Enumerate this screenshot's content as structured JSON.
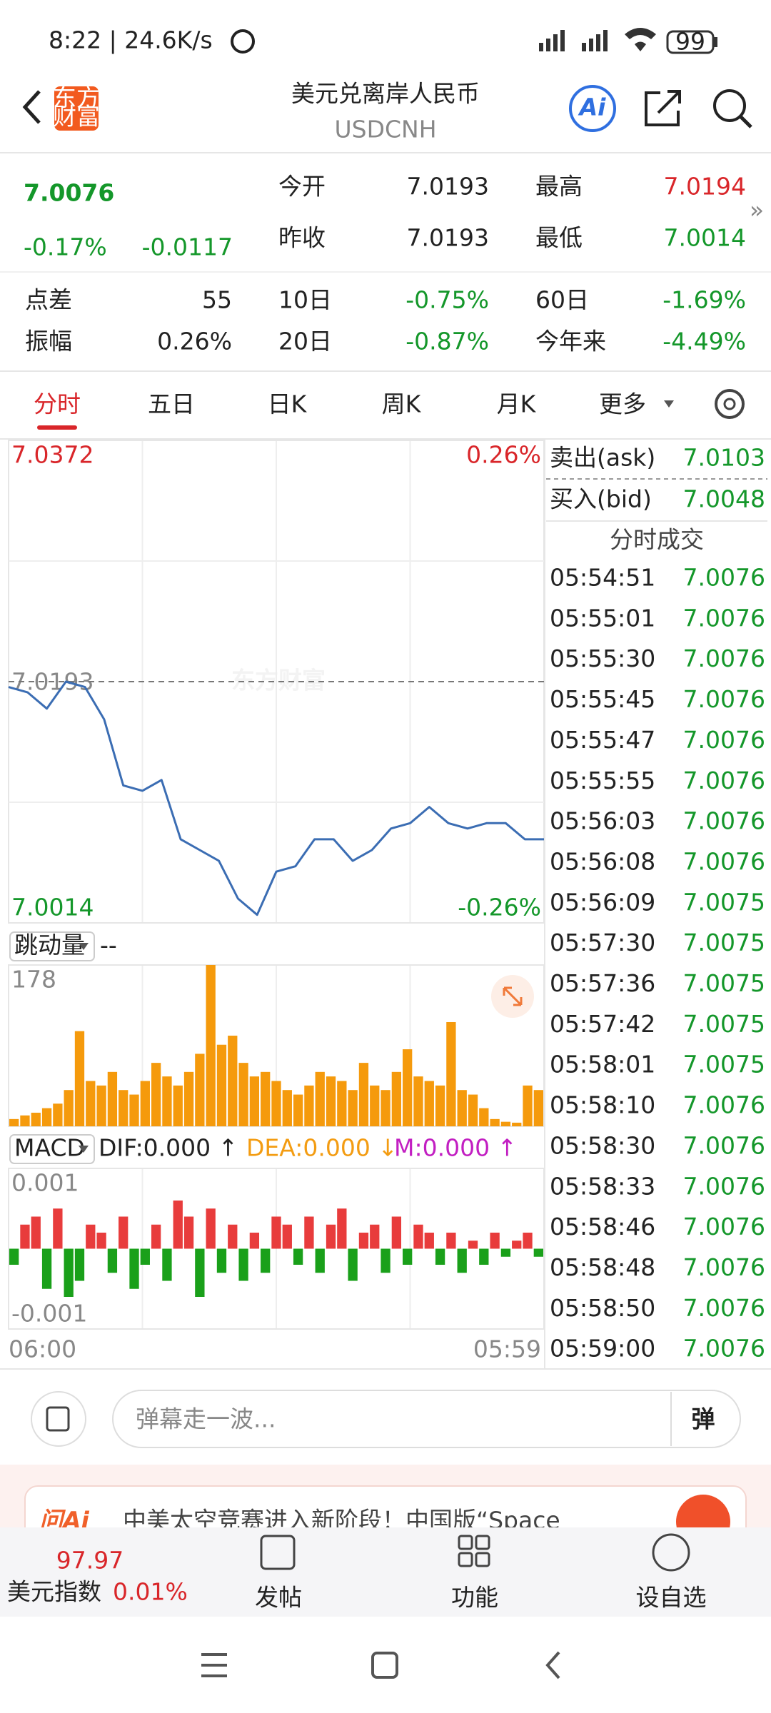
{
  "status_bar": {
    "time": "8:22 | 24.6K/s",
    "battery": "99"
  },
  "header": {
    "logo": [
      "东方",
      "财富"
    ],
    "title": "美元兑离岸人民币",
    "code": "USDCNH",
    "ai": "Ai"
  },
  "quote": {
    "price": "7.0076",
    "change_pct": "-0.17%",
    "change": "-0.0117",
    "fields": [
      [
        "今开",
        "7.0193"
      ],
      [
        "最高",
        "7.0194"
      ],
      [
        "昨收",
        "7.0193"
      ],
      [
        "最低",
        "7.0014"
      ]
    ],
    "stats": [
      [
        "点差",
        "55"
      ],
      [
        "10日",
        "-0.75%"
      ],
      [
        "60日",
        "-1.69%"
      ],
      [
        "振幅",
        "0.26%"
      ],
      [
        "20日",
        "-0.87%"
      ],
      [
        "今年来",
        "-4.49%"
      ]
    ]
  },
  "tabs": [
    "分时",
    "五日",
    "日K",
    "周K",
    "月K",
    "更多"
  ],
  "watermark": "东方财富",
  "volume_selector": "跳动量",
  "volume_value": "--",
  "macd_legend": {
    "name": "MACD",
    "dif": "DIF:0.000 ↑",
    "dea": "DEA:0.000 ↓",
    "m": "M:0.000 ↑"
  },
  "time_axis": [
    "06:00",
    "05:59"
  ],
  "chart_data": [
    {
      "type": "line",
      "color": "#3b6db3",
      "ylim": [
        7.0014,
        7.0372
      ],
      "yticks": [
        7.0014,
        7.0193,
        7.0372
      ],
      "y2lim": [
        -0.26,
        0.26
      ],
      "y2ticks": [
        {
          "value": -0.26,
          "label": "-0.26%"
        },
        {
          "value": 0.26,
          "label": "0.26%"
        }
      ],
      "values": [
        7.0189,
        7.0185,
        7.0173,
        7.0193,
        7.0189,
        7.0165,
        7.0116,
        7.0112,
        7.012,
        7.0076,
        7.0068,
        7.006,
        7.0032,
        7.002,
        7.0052,
        7.0056,
        7.0076,
        7.0076,
        7.006,
        7.0068,
        7.0084,
        7.0088,
        7.01,
        7.0088,
        7.0084,
        7.0088,
        7.0088,
        7.0076,
        7.0076
      ]
    },
    {
      "type": "bar",
      "color": "#f59a0c",
      "ylim": [
        0,
        178
      ],
      "yticks": [
        178
      ],
      "values": [
        8,
        12,
        15,
        20,
        25,
        40,
        105,
        50,
        45,
        60,
        40,
        35,
        50,
        70,
        55,
        45,
        60,
        80,
        178,
        90,
        100,
        70,
        55,
        60,
        50,
        40,
        35,
        45,
        60,
        55,
        50,
        40,
        70,
        45,
        40,
        60,
        85,
        55,
        50,
        45,
        115,
        40,
        35,
        20,
        8,
        5,
        4,
        45,
        40
      ]
    },
    {
      "type": "bar",
      "colors": {
        "up": "#e83c3c",
        "down": "#1aa01a"
      },
      "ylim": [
        -0.001,
        0.001
      ],
      "yticks": [
        -0.001,
        0.001
      ],
      "values": [
        -0.0002,
        0.0003,
        0.0004,
        -0.0005,
        0.0005,
        -0.0006,
        -0.0004,
        0.0003,
        0.0002,
        -0.0003,
        0.0004,
        -0.0005,
        -0.0002,
        0.0003,
        -0.0004,
        0.0006,
        0.0004,
        -0.0006,
        0.0005,
        -0.0003,
        0.0003,
        -0.0004,
        0.0002,
        -0.0003,
        0.0004,
        0.0003,
        -0.0002,
        0.0004,
        -0.0003,
        0.0003,
        0.0005,
        -0.0004,
        0.0002,
        0.0003,
        -0.0003,
        0.0004,
        -0.0002,
        0.0003,
        0.0002,
        -0.0002,
        0.0002,
        -0.0003,
        0.0001,
        -0.0002,
        0.0002,
        -0.0001,
        0.0001,
        0.0002,
        -0.0001
      ]
    }
  ],
  "order_book": {
    "ask_label": "卖出(ask)",
    "ask": "7.0103",
    "bid_label": "买入(bid)",
    "bid": "7.0048",
    "trades_title": "分时成交",
    "trades": [
      [
        "05:54:51",
        "7.0076"
      ],
      [
        "05:55:01",
        "7.0076"
      ],
      [
        "05:55:30",
        "7.0076"
      ],
      [
        "05:55:45",
        "7.0076"
      ],
      [
        "05:55:47",
        "7.0076"
      ],
      [
        "05:55:55",
        "7.0076"
      ],
      [
        "05:56:03",
        "7.0076"
      ],
      [
        "05:56:08",
        "7.0076"
      ],
      [
        "05:56:09",
        "7.0075"
      ],
      [
        "05:57:30",
        "7.0075"
      ],
      [
        "05:57:36",
        "7.0075"
      ],
      [
        "05:57:42",
        "7.0075"
      ],
      [
        "05:58:01",
        "7.0075"
      ],
      [
        "05:58:10",
        "7.0076"
      ],
      [
        "05:58:30",
        "7.0076"
      ],
      [
        "05:58:33",
        "7.0076"
      ],
      [
        "05:58:46",
        "7.0076"
      ],
      [
        "05:58:48",
        "7.0076"
      ],
      [
        "05:58:50",
        "7.0076"
      ],
      [
        "05:59:00",
        "7.0076"
      ]
    ]
  },
  "comment": {
    "placeholder": "弹幕走一波...",
    "button": "弹"
  },
  "banner": {
    "brand": "问Ai",
    "text": "中美太空竞赛进入新阶段！中国版“Space"
  },
  "bottom_nav": {
    "index_value": "97.97",
    "index_name": "美元指数",
    "index_change": "0.01%",
    "items": [
      "发帖",
      "功能",
      "设自选"
    ]
  }
}
